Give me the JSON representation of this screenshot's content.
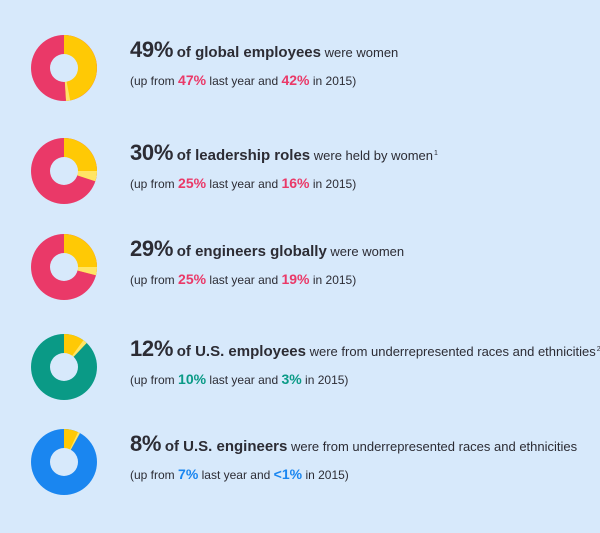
{
  "colors": {
    "background": "#d7e9fb",
    "yellow": "#ffc905",
    "light_yellow": "#ffe566",
    "pink": "#ea3968",
    "teal": "#0a9a86",
    "blue": "#1a86f0",
    "text": "#2c2c34"
  },
  "chart_data": [
    {
      "type": "pie",
      "value_percent": 49,
      "previous_year_percent": 47,
      "percent_2015": 42,
      "headline_value": "49%",
      "headline_bold": "of global employees",
      "headline_rest": "were women",
      "footnote": "",
      "sub_prefix": "(up from",
      "sub_prev": "47%",
      "sub_mid": "last year and",
      "sub_2015": "42%",
      "sub_suffix": "in 2015)",
      "accent": "#ea3968",
      "ring_color": "#ea3968",
      "wedge_color": "#ffc905",
      "inner_wedge_color": "#ffe566"
    },
    {
      "type": "pie",
      "value_percent": 30,
      "previous_year_percent": 25,
      "percent_2015": 16,
      "headline_value": "30%",
      "headline_bold": "of leadership roles",
      "headline_rest": "were held by women",
      "footnote": "1",
      "sub_prefix": "(up from",
      "sub_prev": "25%",
      "sub_mid": "last year and",
      "sub_2015": "16%",
      "sub_suffix": "in 2015)",
      "accent": "#ea3968",
      "ring_color": "#ea3968",
      "wedge_color": "#ffc905",
      "inner_wedge_color": "#ffe566"
    },
    {
      "type": "pie",
      "value_percent": 29,
      "previous_year_percent": 25,
      "percent_2015": 19,
      "headline_value": "29%",
      "headline_bold": "of engineers globally",
      "headline_rest": "were women",
      "footnote": "",
      "sub_prefix": "(up from",
      "sub_prev": "25%",
      "sub_mid": "last year and",
      "sub_2015": "19%",
      "sub_suffix": "in 2015)",
      "accent": "#ea3968",
      "ring_color": "#ea3968",
      "wedge_color": "#ffc905",
      "inner_wedge_color": "#ffe566"
    },
    {
      "type": "pie",
      "value_percent": 12,
      "previous_year_percent": 10,
      "percent_2015": 3,
      "headline_value": "12%",
      "headline_bold": "of U.S. employees",
      "headline_rest": "were from underrepresented races and ethnicities",
      "footnote": "2",
      "sub_prefix": "(up from",
      "sub_prev": "10%",
      "sub_mid": "last year and",
      "sub_2015": "3%",
      "sub_suffix": "in 2015)",
      "accent": "#0a9a86",
      "ring_color": "#0a9a86",
      "wedge_color": "#ffc905",
      "inner_wedge_color": "#ffe566"
    },
    {
      "type": "pie",
      "value_percent": 8,
      "previous_year_percent": 7,
      "percent_2015": 1,
      "headline_value": "8%",
      "headline_bold": "of U.S. engineers",
      "headline_rest": "were from underrepresented races and ethnicities",
      "footnote": "",
      "sub_prefix": "(up from",
      "sub_prev": "7%",
      "sub_mid": "last year and",
      "sub_2015": "<1%",
      "sub_suffix": "in 2015)",
      "accent": "#1a86f0",
      "ring_color": "#1a86f0",
      "wedge_color": "#ffc905",
      "inner_wedge_color": "#ffe566"
    }
  ]
}
